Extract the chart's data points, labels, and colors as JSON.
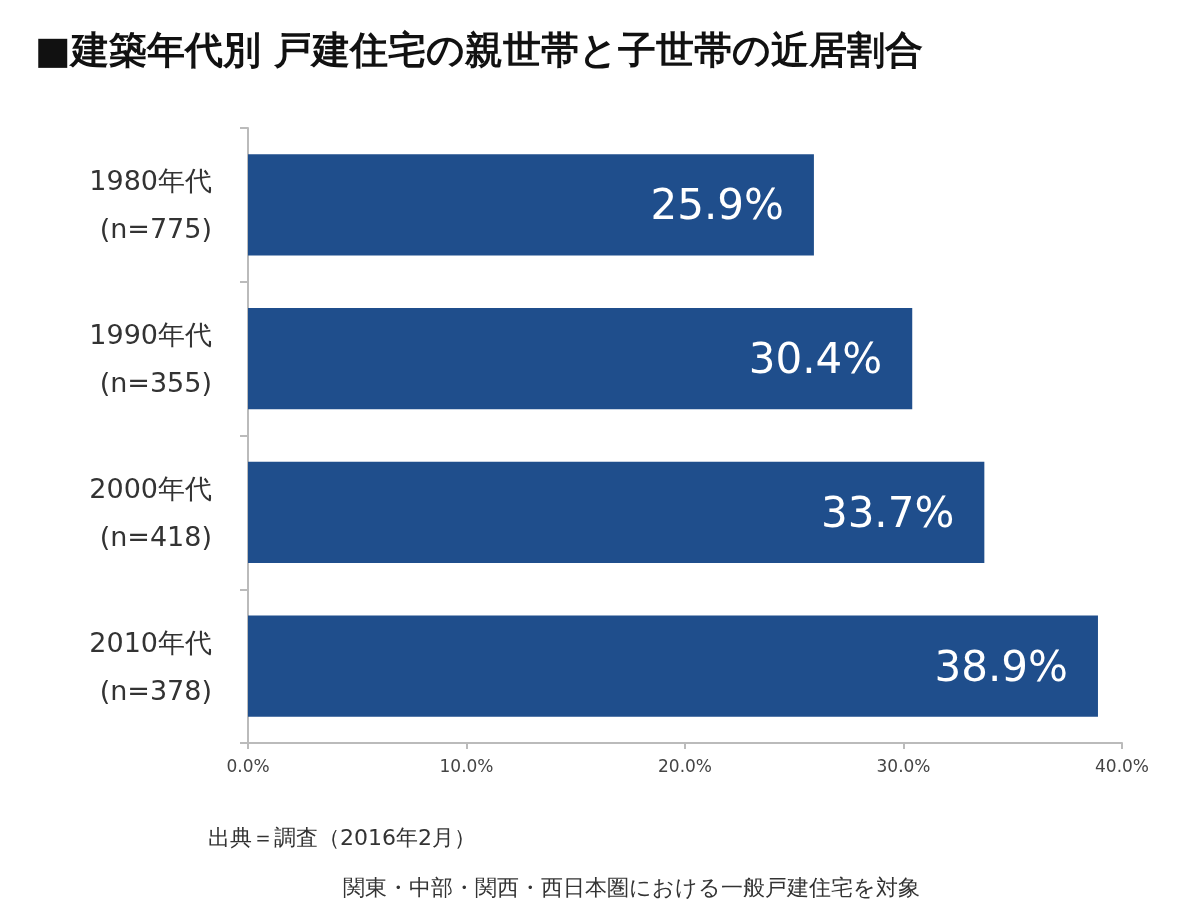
{
  "chart_data": {
    "type": "bar",
    "orientation": "horizontal",
    "title": "■建築年代別 戸建住宅の親世帯と子世帯の近居割合",
    "categories": [
      "1980年代\n(n=775)",
      "1990年代\n(n=355)",
      "2000年代\n(n=418)",
      "2010年代\n(n=378)"
    ],
    "values": [
      25.9,
      30.4,
      33.7,
      38.9
    ],
    "value_labels": [
      "25.9%",
      "30.4%",
      "33.7%",
      "38.9%"
    ],
    "color": "#1f4e8c",
    "xlim": [
      0,
      40
    ],
    "xticks": [
      {
        "value": 0,
        "label": "0.0%"
      },
      {
        "value": 10,
        "label": "10.0%"
      },
      {
        "value": 20,
        "label": "20.0%"
      },
      {
        "value": 30,
        "label": "30.0%"
      },
      {
        "value": 40,
        "label": "40.0%"
      }
    ],
    "grid": false,
    "annotations": [
      "出典＝調査（2016年2月）",
      "関東・中部・関西・西日本圏における一般戸建住宅を対象"
    ]
  }
}
